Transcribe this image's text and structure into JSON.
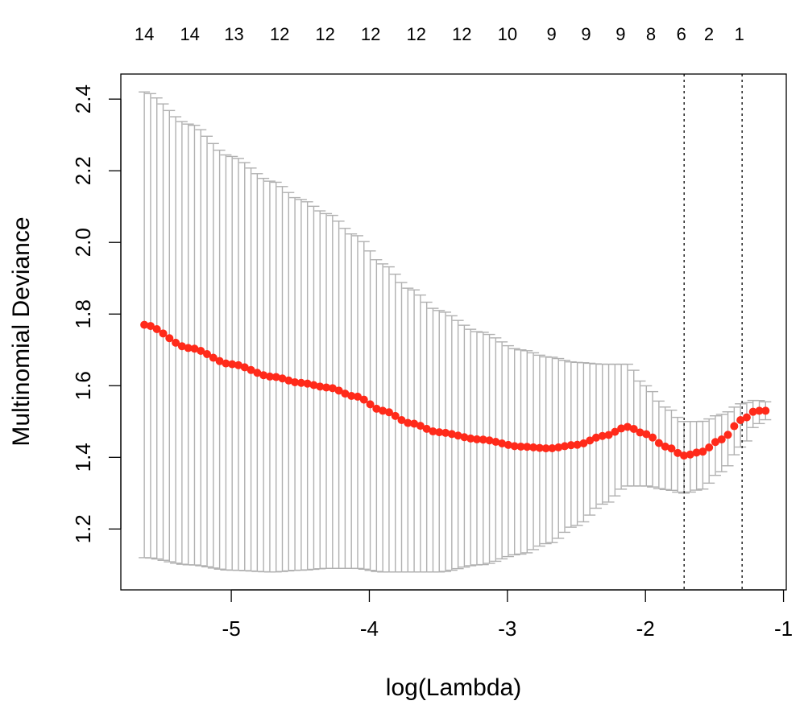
{
  "chart_data": {
    "type": "scatter",
    "title": "",
    "xlabel": "log(Lambda)",
    "ylabel": "Multinomial Deviance",
    "xlim": [
      -5.8,
      -0.98
    ],
    "ylim": [
      1.03,
      2.47
    ],
    "x_ticks": [
      -5,
      -4,
      -3,
      -2,
      -1
    ],
    "x_tick_labels": [
      "-5",
      "-4",
      "-3",
      "-2",
      "-1"
    ],
    "y_ticks": [
      1.2,
      1.4,
      1.6,
      1.8,
      2.0,
      2.2,
      2.4
    ],
    "y_tick_labels": [
      "1.2",
      "1.4",
      "1.6",
      "1.8",
      "2.0",
      "2.2",
      "2.4"
    ],
    "top_axis_labels": [
      {
        "x": -5.63,
        "label": "14"
      },
      {
        "x": -5.3,
        "label": "14"
      },
      {
        "x": -4.98,
        "label": "13"
      },
      {
        "x": -4.65,
        "label": "12"
      },
      {
        "x": -4.32,
        "label": "12"
      },
      {
        "x": -3.99,
        "label": "12"
      },
      {
        "x": -3.66,
        "label": "12"
      },
      {
        "x": -3.33,
        "label": "12"
      },
      {
        "x": -3.0,
        "label": "10"
      },
      {
        "x": -2.68,
        "label": "9"
      },
      {
        "x": -2.43,
        "label": "9"
      },
      {
        "x": -2.18,
        "label": "9"
      },
      {
        "x": -1.96,
        "label": "8"
      },
      {
        "x": -1.74,
        "label": "6"
      },
      {
        "x": -1.54,
        "label": "2"
      },
      {
        "x": -1.32,
        "label": "1"
      }
    ],
    "vlines": [
      -1.72,
      -1.3
    ],
    "point_color": "#ff2a1a",
    "errorbar_color": "#b0b0b0",
    "grid": false,
    "legend": "none",
    "mean_curve_knots": {
      "x": [
        -5.63,
        -5.3,
        -5.0,
        -4.7,
        -4.5,
        -4.3,
        -4.1,
        -3.9,
        -3.7,
        -3.5,
        -3.2,
        -2.9,
        -2.7,
        -2.5,
        -2.3,
        -2.13,
        -2.0,
        -1.85,
        -1.72,
        -1.6,
        -1.45,
        -1.3,
        -1.2,
        -1.13
      ],
      "y": [
        1.77,
        1.705,
        1.66,
        1.625,
        1.608,
        1.595,
        1.57,
        1.53,
        1.495,
        1.47,
        1.45,
        1.43,
        1.425,
        1.435,
        1.46,
        1.485,
        1.465,
        1.43,
        1.405,
        1.415,
        1.45,
        1.505,
        1.53,
        1.53
      ]
    },
    "upper_curve_knots": {
      "x": [
        -5.63,
        -5.3,
        -5.0,
        -4.7,
        -4.5,
        -4.3,
        -4.1,
        -3.9,
        -3.7,
        -3.5,
        -3.2,
        -2.9,
        -2.7,
        -2.5,
        -2.3,
        -2.13,
        -2.0,
        -1.85,
        -1.72,
        -1.6,
        -1.45,
        -1.3,
        -1.2,
        -1.13
      ],
      "y": [
        2.42,
        2.33,
        2.24,
        2.17,
        2.12,
        2.08,
        2.02,
        1.94,
        1.87,
        1.81,
        1.75,
        1.7,
        1.68,
        1.665,
        1.66,
        1.66,
        1.6,
        1.54,
        1.5,
        1.5,
        1.52,
        1.55,
        1.56,
        1.555
      ]
    },
    "lower_curve_knots": {
      "x": [
        -5.63,
        -5.3,
        -5.0,
        -4.7,
        -4.5,
        -4.3,
        -4.1,
        -3.9,
        -3.7,
        -3.5,
        -3.2,
        -2.9,
        -2.7,
        -2.5,
        -2.3,
        -2.13,
        -2.0,
        -1.85,
        -1.72,
        -1.6,
        -1.45,
        -1.3,
        -1.2,
        -1.13
      ],
      "y": [
        1.12,
        1.1,
        1.085,
        1.08,
        1.085,
        1.09,
        1.09,
        1.08,
        1.08,
        1.08,
        1.1,
        1.13,
        1.16,
        1.21,
        1.27,
        1.32,
        1.32,
        1.31,
        1.3,
        1.31,
        1.36,
        1.43,
        1.49,
        1.505
      ]
    },
    "n_points": 100
  }
}
